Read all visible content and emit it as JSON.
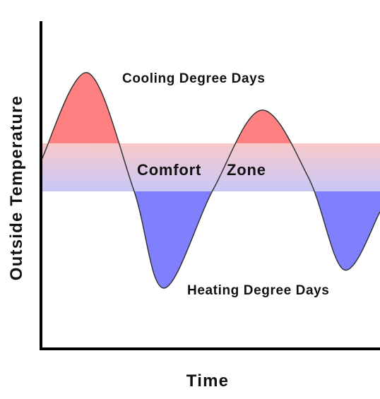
{
  "labels": {
    "cooling": "Cooling Degree Days",
    "heating": "Heating Degree Days",
    "comfort_word1": "Comfort",
    "comfort_word2": "Zone",
    "x_axis": "Time",
    "y_axis": "Outside Temperature"
  },
  "colors": {
    "cooling_fill": "#ff8080",
    "heating_fill": "#8080ff",
    "comfort_band_top": "#f8c8c8",
    "comfort_band_bottom": "#c8c8f8",
    "curve": "#333333",
    "axis": "#000000",
    "text": "#111111"
  }
}
